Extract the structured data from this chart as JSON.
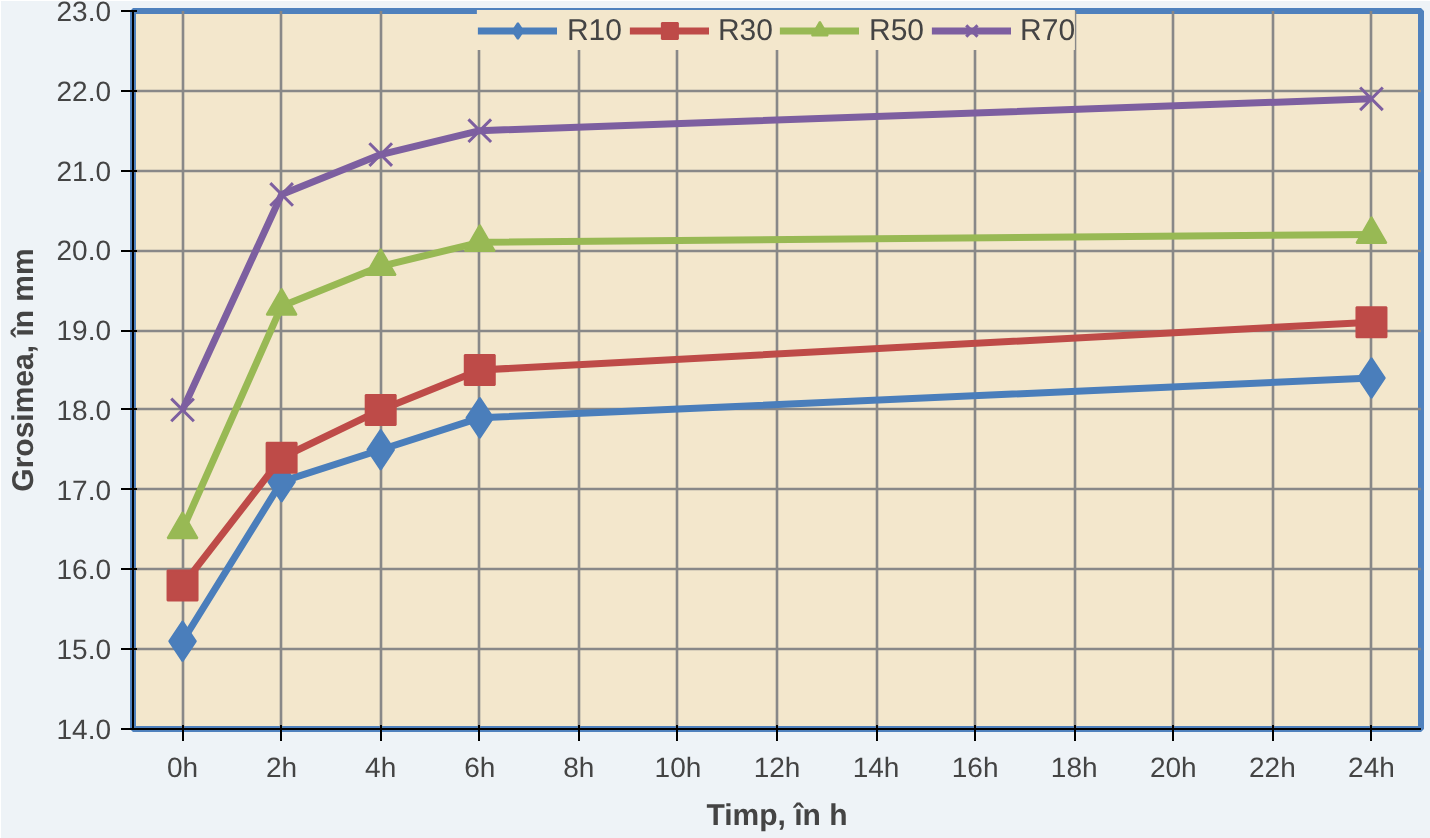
{
  "chart_data": {
    "type": "line",
    "xlabel": "Timp, în h",
    "ylabel": "Grosimea, în mm",
    "x": [
      0,
      2,
      4,
      6,
      24
    ],
    "series": [
      {
        "name": "R10",
        "color": "#4a7ebb",
        "marker": "diamond",
        "values": [
          15.1,
          17.1,
          17.5,
          17.9,
          18.4
        ]
      },
      {
        "name": "R30",
        "color": "#be4b48",
        "marker": "square",
        "values": [
          15.8,
          17.4,
          18.0,
          18.5,
          19.1
        ]
      },
      {
        "name": "R50",
        "color": "#98b954",
        "marker": "triangle",
        "values": [
          16.5,
          19.3,
          19.8,
          20.1,
          20.2
        ]
      },
      {
        "name": "R70",
        "color": "#7d5fa0",
        "marker": "cross",
        "values": [
          18.0,
          20.7,
          21.2,
          21.5,
          21.9
        ]
      }
    ],
    "xlim": [
      -1,
      25
    ],
    "xticks": [
      {
        "value": 0,
        "label": "0h"
      },
      {
        "value": 2,
        "label": "2h"
      },
      {
        "value": 4,
        "label": "4h"
      },
      {
        "value": 6,
        "label": "6h"
      },
      {
        "value": 8,
        "label": "8h"
      },
      {
        "value": 10,
        "label": "10h"
      },
      {
        "value": 12,
        "label": "12h"
      },
      {
        "value": 14,
        "label": "14h"
      },
      {
        "value": 16,
        "label": "16h"
      },
      {
        "value": 18,
        "label": "18h"
      },
      {
        "value": 20,
        "label": "20h"
      },
      {
        "value": 22,
        "label": "22h"
      },
      {
        "value": 24,
        "label": "24h"
      }
    ],
    "ylim": [
      14,
      23
    ],
    "yticks": [
      {
        "value": 14,
        "label": "14.0"
      },
      {
        "value": 15,
        "label": "15.0"
      },
      {
        "value": 16,
        "label": "16.0"
      },
      {
        "value": 17,
        "label": "17.0"
      },
      {
        "value": 18,
        "label": "18.0"
      },
      {
        "value": 19,
        "label": "19.0"
      },
      {
        "value": 20,
        "label": "20.0"
      },
      {
        "value": 21,
        "label": "21.0"
      },
      {
        "value": 22,
        "label": "22.0"
      },
      {
        "value": 23,
        "label": "23.0"
      }
    ],
    "grid": true,
    "legend": "top",
    "line_style": "solid"
  }
}
